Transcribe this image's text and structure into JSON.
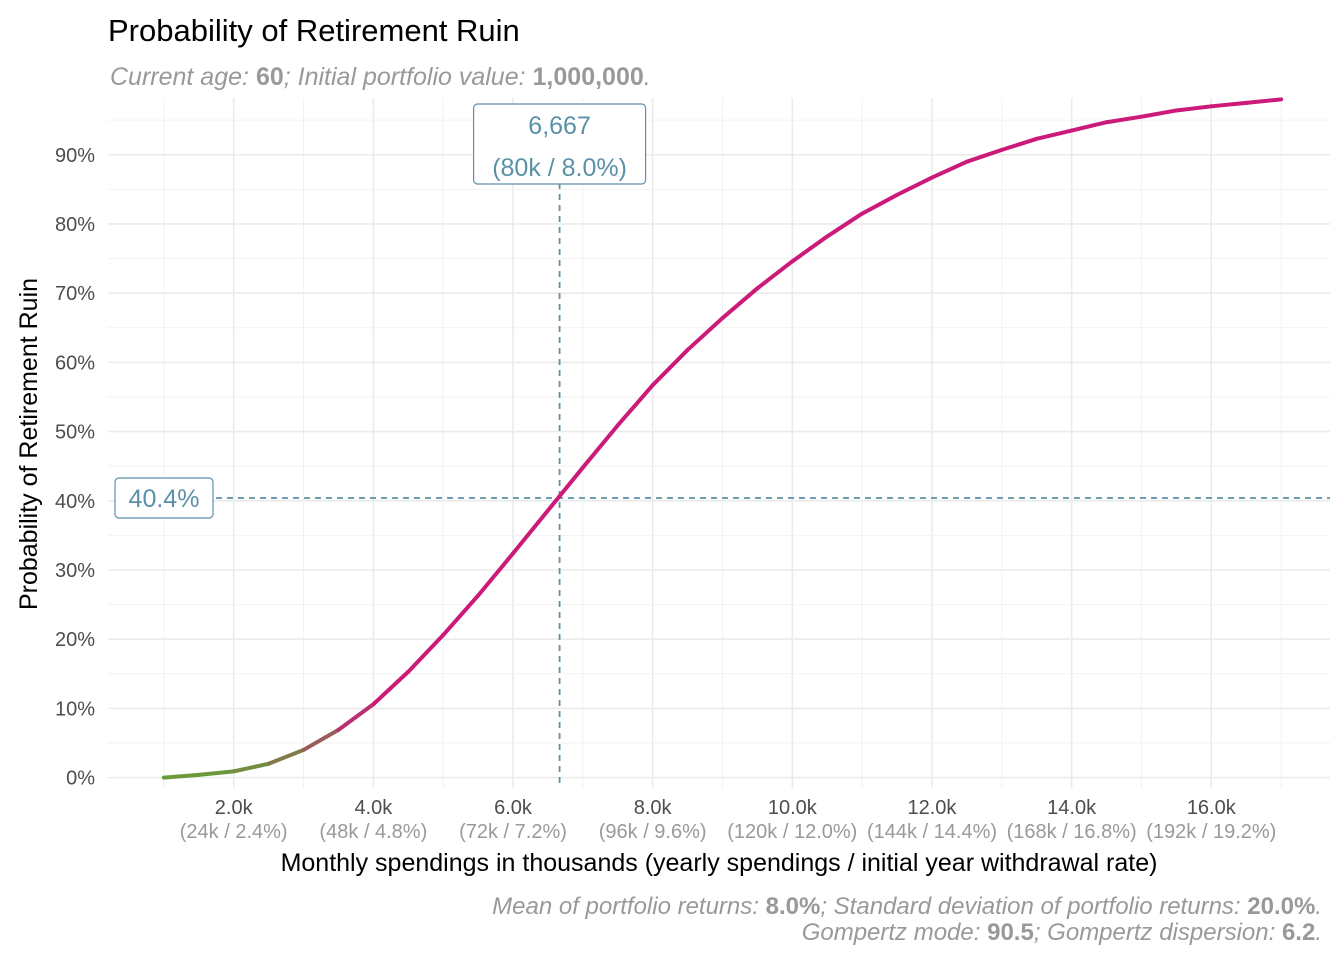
{
  "chart_data": {
    "type": "line",
    "title": "Probability of Retirement Ruin",
    "subtitle": [
      {
        "text": "Current age",
        "bold": false
      },
      {
        "text": ": ",
        "bold": false
      },
      {
        "text": "60",
        "bold": true
      },
      {
        "text": "; ",
        "bold": false
      },
      {
        "text": "Initial portfolio value",
        "bold": false
      },
      {
        "text": ": ",
        "bold": false
      },
      {
        "text": "1,000,000",
        "bold": true
      },
      {
        "text": ".",
        "bold": false
      }
    ],
    "xlabel": "Monthly spendings in thousands (yearly spendings / initial year withdrawal rate)",
    "ylabel": "Probability of Retirement Ruin",
    "xlim": [
      0.2,
      17.7
    ],
    "ylim": [
      -1.5,
      98.2
    ],
    "x_ticks": [
      {
        "value": 2,
        "label": "2.0k",
        "sublabel": "(24k / 2.4%)"
      },
      {
        "value": 4,
        "label": "4.0k",
        "sublabel": "(48k / 4.8%)"
      },
      {
        "value": 6,
        "label": "6.0k",
        "sublabel": "(72k / 7.2%)"
      },
      {
        "value": 8,
        "label": "8.0k",
        "sublabel": "(96k / 9.6%)"
      },
      {
        "value": 10,
        "label": "10.0k",
        "sublabel": "(120k / 12.0%)"
      },
      {
        "value": 12,
        "label": "12.0k",
        "sublabel": "(144k / 14.4%)"
      },
      {
        "value": 14,
        "label": "14.0k",
        "sublabel": "(168k / 16.8%)"
      },
      {
        "value": 16,
        "label": "16.0k",
        "sublabel": "(192k / 19.2%)"
      }
    ],
    "y_ticks": [
      {
        "value": 0,
        "label": "0%"
      },
      {
        "value": 10,
        "label": "10%"
      },
      {
        "value": 20,
        "label": "20%"
      },
      {
        "value": 30,
        "label": "30%"
      },
      {
        "value": 40,
        "label": "40%"
      },
      {
        "value": 50,
        "label": "50%"
      },
      {
        "value": 60,
        "label": "60%"
      },
      {
        "value": 70,
        "label": "70%"
      },
      {
        "value": 80,
        "label": "80%"
      },
      {
        "value": 90,
        "label": "90%"
      }
    ],
    "grid": true,
    "series": [
      {
        "x": [
          1.0,
          1.5,
          2.0,
          2.5,
          3.0,
          3.5,
          4.0,
          4.5,
          5.0,
          5.5,
          6.0,
          6.5,
          7.0,
          7.5,
          8.0,
          8.5,
          9.0,
          9.5,
          10.0,
          10.5,
          11.0,
          11.5,
          12.0,
          12.5,
          13.0,
          13.5,
          14.0,
          14.5,
          15.0,
          15.5,
          16.0,
          16.5,
          17.0
        ],
        "y": [
          0.0,
          0.4,
          0.9,
          2.0,
          4.0,
          6.9,
          10.6,
          15.3,
          20.6,
          26.3,
          32.4,
          38.6,
          44.8,
          50.9,
          56.7,
          61.8,
          66.4,
          70.7,
          74.6,
          78.2,
          81.5,
          84.2,
          86.7,
          89.0,
          90.7,
          92.3,
          93.5,
          94.7,
          95.5,
          96.4,
          97.0,
          97.5,
          98.0
        ],
        "color": "#cc1a7a",
        "low_color": "#6b9a3a"
      }
    ],
    "highlight": {
      "x": 6.667,
      "y": 40.4,
      "x_label": "6,667",
      "x_sublabel": "(80k / 8.0%)",
      "y_label": "40.4%",
      "color": "#5b91a8"
    },
    "caption_lines": [
      [
        {
          "text": "Mean of portfolio returns",
          "bold": false
        },
        {
          "text": ": ",
          "bold": false
        },
        {
          "text": "8.0%",
          "bold": true
        },
        {
          "text": "; ",
          "bold": false
        },
        {
          "text": "Standard deviation of portfolio returns",
          "bold": false
        },
        {
          "text": ": ",
          "bold": false
        },
        {
          "text": "20.0%",
          "bold": true
        },
        {
          "text": ".",
          "bold": false
        }
      ],
      [
        {
          "text": "Gompertz mode",
          "bold": false
        },
        {
          "text": ": ",
          "bold": false
        },
        {
          "text": "90.5",
          "bold": true
        },
        {
          "text": "; ",
          "bold": false
        },
        {
          "text": "Gompertz dispersion",
          "bold": false
        },
        {
          "text": ": ",
          "bold": false
        },
        {
          "text": "6.2",
          "bold": true
        },
        {
          "text": ".",
          "bold": false
        }
      ]
    ]
  }
}
